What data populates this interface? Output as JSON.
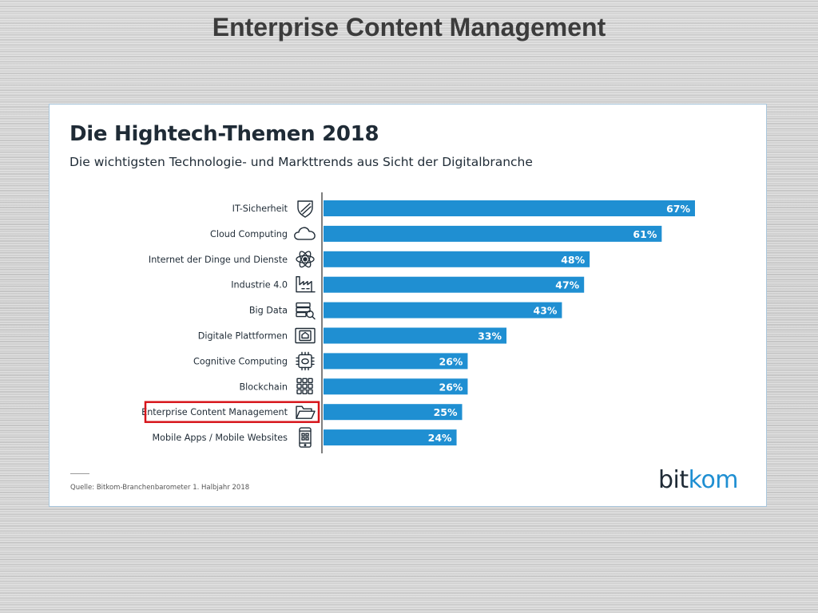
{
  "slide": {
    "title": "Enterprise Content Management"
  },
  "chart_data": {
    "type": "bar",
    "orientation": "horizontal",
    "title": "Die Hightech-Themen 2018",
    "subtitle": "Die wichtigsten Technologie- und Markttrends aus Sicht der Digitalbranche",
    "xlabel": "",
    "ylabel": "",
    "xlim": [
      0,
      67
    ],
    "grid": false,
    "categories": [
      "IT-Sicherheit",
      "Cloud Computing",
      "Internet der Dinge und Dienste",
      "Industrie 4.0",
      "Big Data",
      "Digitale Plattformen",
      "Cognitive Computing",
      "Blockchain",
      "Enterprise Content Management",
      "Mobile Apps / Mobile Websites"
    ],
    "values": [
      67,
      61,
      48,
      47,
      43,
      33,
      26,
      26,
      25,
      24
    ],
    "labels": [
      "67%",
      "61%",
      "48%",
      "47%",
      "43%",
      "33%",
      "26%",
      "26%",
      "25%",
      "24%"
    ],
    "icons": [
      "shield-icon",
      "cloud-icon",
      "atom-icon",
      "factory-icon",
      "database-search-icon",
      "platform-icon",
      "chip-brain-icon",
      "blockchain-icon",
      "folder-icon",
      "smartphone-icon"
    ],
    "highlight_category": "Enterprise Content Management",
    "colors": {
      "bar": "#1f8fd2",
      "highlight_box": "#d7141a",
      "value_label": "#ffffff"
    }
  },
  "footer": {
    "source": "Quelle: Bitkom-Branchenbarometer 1. Halbjahr 2018",
    "logo_main": "bit",
    "logo_accent": "kom"
  }
}
